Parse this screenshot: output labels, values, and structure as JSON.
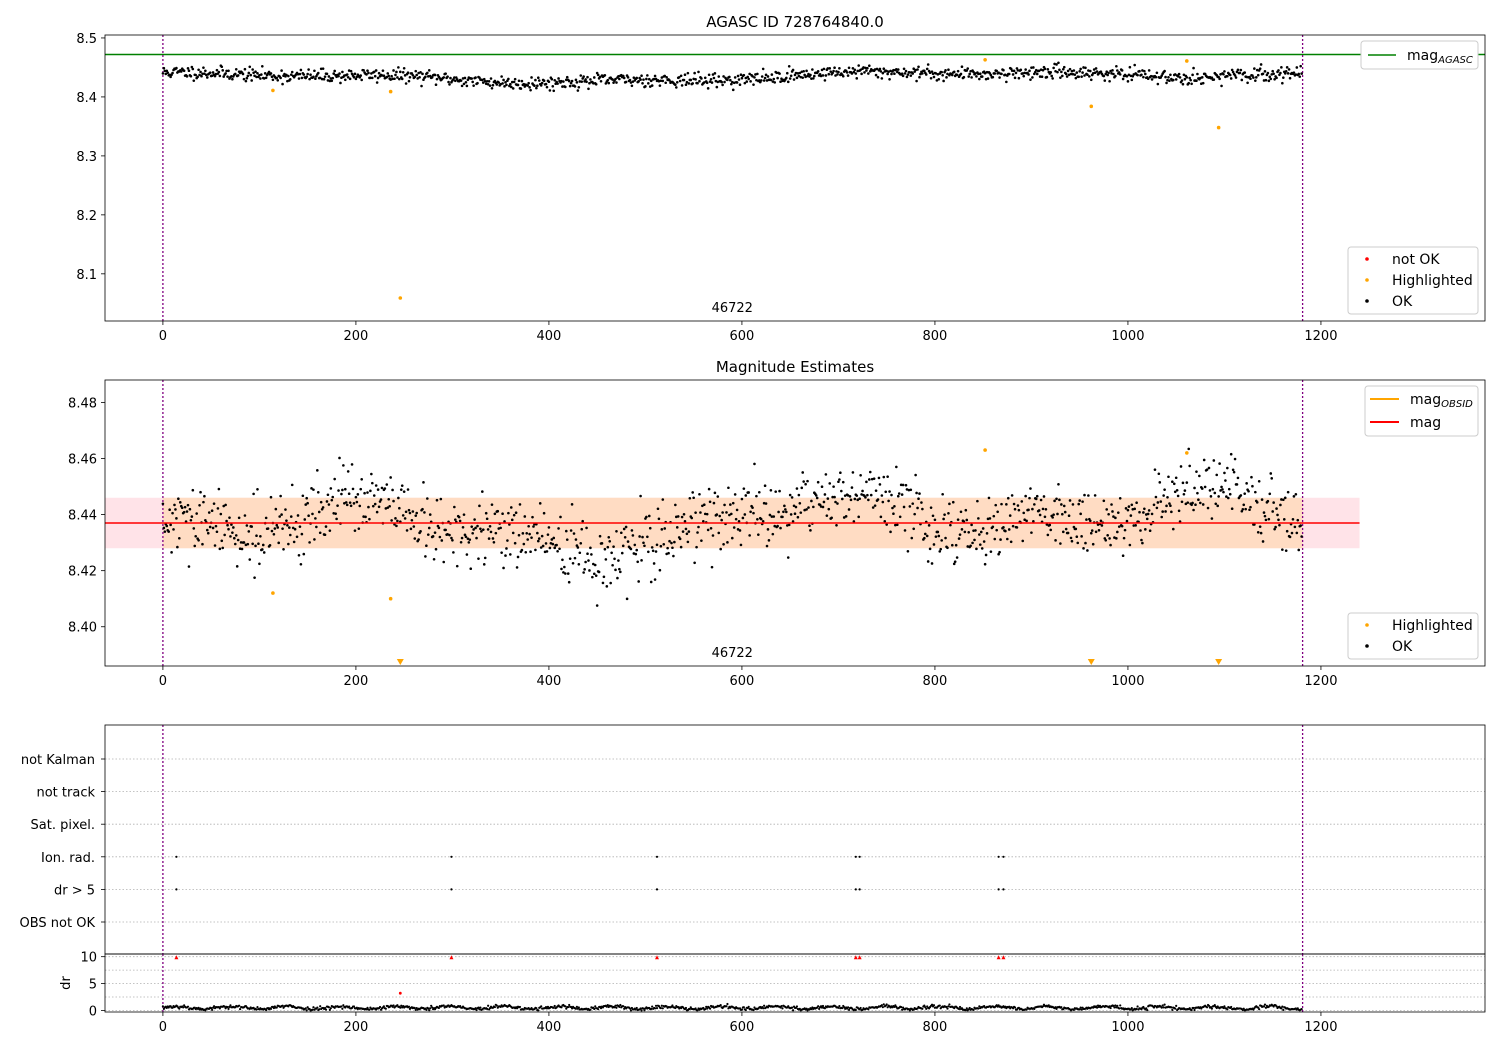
{
  "chart_data": [
    {
      "type": "scatter",
      "title": "AGASC ID 728764840.0",
      "annotation": "46722",
      "xlim": [
        -60,
        1370
      ],
      "ylim": [
        8.02,
        8.505
      ],
      "xticks": [
        0,
        200,
        400,
        600,
        800,
        1000,
        1200
      ],
      "yticks": [
        8.1,
        8.2,
        8.3,
        8.4,
        8.5
      ],
      "ytick_labels": [
        "8.1",
        "8.2",
        "8.3",
        "8.4",
        "8.5"
      ],
      "vlines": [
        0,
        1181
      ],
      "hline": {
        "name": "mag",
        "sub": "AGASC",
        "value": 8.472,
        "color": "#008000"
      },
      "ok_band": {
        "n": 1181,
        "center": 8.435,
        "spread": 0.008
      },
      "series": [
        {
          "name": "not OK",
          "color": "#ff0000",
          "points": []
        },
        {
          "name": "Highlighted",
          "color": "#ffa500",
          "points": [
            [
              114,
              8.411
            ],
            [
              236,
              8.409
            ],
            [
              246,
              8.059
            ],
            [
              852,
              8.463
            ],
            [
              962,
              8.384
            ],
            [
              1061,
              8.461
            ],
            [
              1094,
              8.348
            ]
          ]
        },
        {
          "name": "OK",
          "color": "#000000"
        }
      ],
      "legend_top": "top-right",
      "legend_bottom": "bottom-right"
    },
    {
      "type": "scatter",
      "title": "Magnitude Estimates",
      "annotation": "46722",
      "xlim": [
        -60,
        1370
      ],
      "ylim": [
        8.386,
        8.488
      ],
      "xticks": [
        0,
        200,
        400,
        600,
        800,
        1000,
        1200
      ],
      "yticks": [
        8.4,
        8.42,
        8.44,
        8.46,
        8.48
      ],
      "ytick_labels": [
        "8.40",
        "8.42",
        "8.44",
        "8.46",
        "8.48"
      ],
      "vlines": [
        0,
        1181
      ],
      "mag_line": {
        "name": "mag",
        "value": 8.437,
        "color": "#ff0000",
        "x_range": [
          -60,
          1240
        ]
      },
      "band_outer": {
        "y": [
          8.428,
          8.446
        ],
        "x_range": [
          -60,
          1240
        ],
        "color": "#ffc0cb"
      },
      "band_inner": {
        "y": [
          8.428,
          8.446
        ],
        "x_range": [
          0,
          1181
        ],
        "color": "#ffdab9"
      },
      "mag_obsid": {
        "name": "mag",
        "sub": "OBSID",
        "value": 8.437,
        "color": "#ffa500"
      },
      "ok_band": {
        "n": 1181,
        "center": 8.436,
        "spread": 0.008
      },
      "series": [
        {
          "name": "Highlighted",
          "color": "#ffa500",
          "points": [
            [
              114,
              8.412
            ],
            [
              236,
              8.41
            ],
            [
              852,
              8.463
            ],
            [
              1061,
              8.462
            ]
          ],
          "below_range_x": [
            246,
            962,
            1094
          ]
        },
        {
          "name": "OK",
          "color": "#000000"
        }
      ],
      "legend_top": "top-right",
      "legend_bottom": "bottom-right"
    },
    {
      "type": "scatter",
      "xlim": [
        -60,
        1370
      ],
      "categories": [
        "not Kalman",
        "not track",
        "Sat. pixel.",
        "Ion. rad.",
        "dr > 5",
        "OBS not OK"
      ],
      "vlines": [
        0,
        1181
      ],
      "flag_points": {
        "Ion. rad.": [
          14,
          299,
          512,
          718,
          722,
          866,
          871
        ],
        "dr > 5": [
          14,
          299,
          512,
          718,
          722,
          866,
          871
        ]
      }
    },
    {
      "type": "scatter",
      "ylabel": "dr",
      "xlim": [
        -60,
        1370
      ],
      "ylim": [
        -0.3,
        10.5
      ],
      "yticks": [
        0,
        5,
        10
      ],
      "ytick_labels": [
        "0",
        "5",
        "10"
      ],
      "xticks": [
        0,
        200,
        400,
        600,
        800,
        1000,
        1200
      ],
      "vlines": [
        0,
        1181
      ],
      "red_points": [
        [
          14,
          9.9
        ],
        [
          299,
          9.9
        ],
        [
          512,
          9.9
        ],
        [
          718,
          9.9
        ],
        [
          722,
          9.9
        ],
        [
          866,
          9.9
        ],
        [
          871,
          9.9
        ]
      ],
      "orange_points": [
        [
          246,
          3.2
        ]
      ],
      "ok_band": {
        "n": 1181,
        "center": 0.5,
        "spread": 0.35
      }
    }
  ]
}
